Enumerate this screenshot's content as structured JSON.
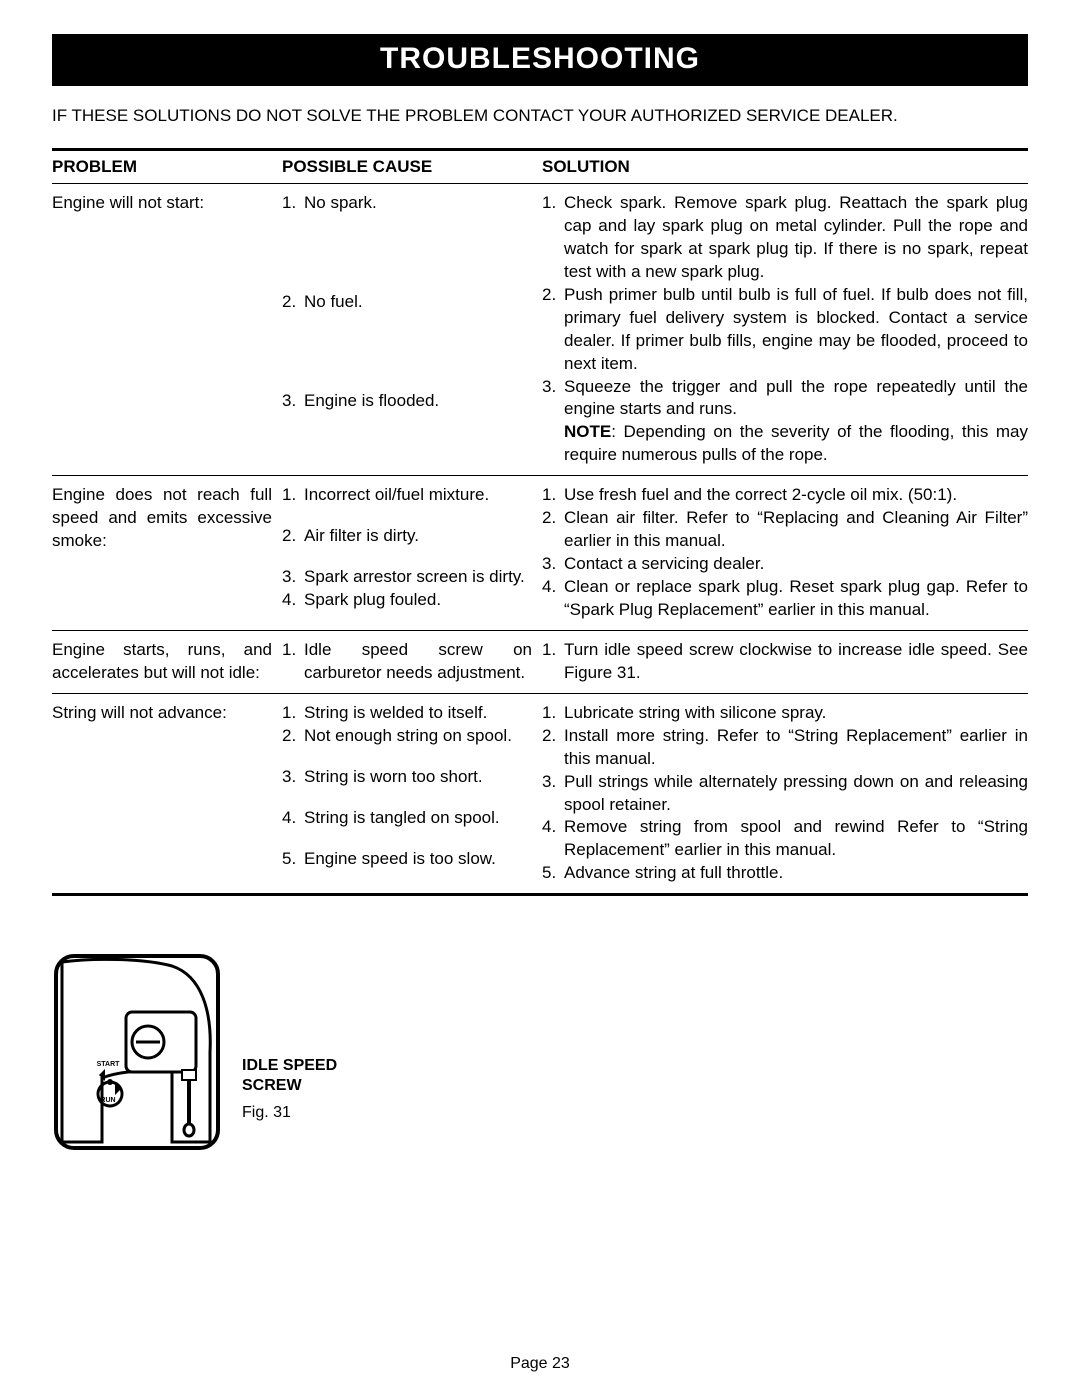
{
  "banner": "TROUBLESHOOTING",
  "intro": "IF THESE SOLUTIONS DO NOT SOLVE THE PROBLEM CONTACT YOUR AUTHORIZED SERVICE DEALER.",
  "columns": {
    "problem": "PROBLEM",
    "cause": "POSSIBLE CAUSE",
    "solution": "SOLUTION"
  },
  "rows": [
    {
      "problem": "Engine will not start:",
      "causes": [
        {
          "n": "1.",
          "text": "No spark."
        },
        {
          "n": "2.",
          "text": "No fuel."
        },
        {
          "n": "3.",
          "text": "Engine is flooded."
        }
      ],
      "solutions": [
        {
          "n": "1.",
          "text": "Check spark. Remove spark plug. Reattach the spark plug cap and lay spark plug on metal cylinder. Pull the rope and watch for spark at spark plug tip. If there is no spark, repeat test with a new spark plug."
        },
        {
          "n": "2.",
          "text": "Push primer bulb until bulb is full of fuel. If bulb does not fill, primary fuel delivery system is blocked. Contact a service dealer. If primer bulb fills, engine may be flooded, proceed to next item."
        },
        {
          "n": "3.",
          "text": "Squeeze the trigger and pull the rope repeatedly until the engine starts and runs.",
          "note_bold": "NOTE",
          "note_rest": ": Depending on the severity of the flooding, this may require numerous pulls of the rope."
        }
      ],
      "cause_spacing": [
        0,
        76,
        76
      ],
      "sol_spacing": [
        0,
        0,
        0
      ]
    },
    {
      "problem": "Engine does not reach full speed and emits excessive smoke:",
      "problem_justify": true,
      "causes": [
        {
          "n": "1.",
          "text": "Incorrect oil/fuel mixture."
        },
        {
          "n": "2.",
          "text": "Air filter is dirty."
        },
        {
          "n": "3.",
          "text": "Spark arrestor screen is dirty."
        },
        {
          "n": "4.",
          "text": "Spark plug fouled."
        }
      ],
      "solutions": [
        {
          "n": "1.",
          "text": "Use fresh fuel and the correct 2-cycle oil mix. (50:1)."
        },
        {
          "n": "2.",
          "text": "Clean air filter. Refer to “Replacing and Cleaning Air Filter” earlier in this manual."
        },
        {
          "n": "3.",
          "text": "Contact a servicing dealer."
        },
        {
          "n": "4.",
          "text": "Clean or replace spark plug. Reset spark plug gap. Refer to “Spark Plug Replacement” earlier in this manual."
        }
      ],
      "cause_spacing": [
        0,
        18,
        18,
        0
      ],
      "sol_spacing": [
        0,
        0,
        0,
        0
      ]
    },
    {
      "problem": "Engine starts, runs, and accelerates but will not idle:",
      "problem_justify": true,
      "causes": [
        {
          "n": "1.",
          "text": "Idle speed screw on carburetor needs adjustment."
        }
      ],
      "solutions": [
        {
          "n": "1.",
          "text": "Turn idle speed screw clockwise to increase idle speed. See Figure 31."
        }
      ],
      "cause_spacing": [
        0
      ],
      "sol_spacing": [
        0
      ]
    },
    {
      "problem": "String will not advance:",
      "causes": [
        {
          "n": "1.",
          "text": "String is welded to itself."
        },
        {
          "n": "2.",
          "text": "Not enough string on spool."
        },
        {
          "n": "3.",
          "text": "String is worn too short."
        },
        {
          "n": "4.",
          "text": "String is tangled on spool."
        },
        {
          "n": "5.",
          "text": "Engine speed is too slow."
        }
      ],
      "solutions": [
        {
          "n": "1.",
          "text": "Lubricate string with silicone spray."
        },
        {
          "n": "2.",
          "text": "Install more string. Refer to “String Replacement” earlier in this manual."
        },
        {
          "n": "3.",
          "text": "Pull strings while alternately pressing down on and releasing spool retainer."
        },
        {
          "n": "4.",
          "text": "Remove string from spool and rewind Refer to “String Replacement” earlier in this manual."
        },
        {
          "n": "5.",
          "text": "Advance string at full throttle."
        }
      ],
      "cause_spacing": [
        0,
        0,
        18,
        18,
        18
      ],
      "sol_spacing": [
        0,
        0,
        0,
        0,
        0
      ]
    }
  ],
  "figure": {
    "idle_label_line1": "IDLE SPEED",
    "idle_label_line2": "SCREW",
    "caption": "Fig. 31",
    "start_label": "START",
    "run_label": "RUN"
  },
  "page_number": "Page 23",
  "colors": {
    "banner_bg": "#000000",
    "banner_fg": "#ffffff",
    "text": "#000000",
    "page_bg": "#ffffff"
  }
}
